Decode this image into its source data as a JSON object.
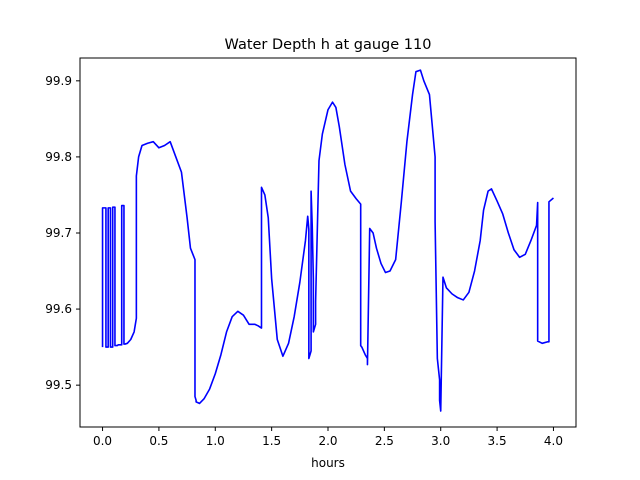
{
  "chart_data": {
    "type": "line",
    "title": "Water Depth h at gauge 110",
    "xlabel": "hours",
    "ylabel": "",
    "xlim": [
      -0.2,
      4.2
    ],
    "ylim": [
      99.445,
      99.93
    ],
    "x_ticks": [
      0.0,
      0.5,
      1.0,
      1.5,
      2.0,
      2.5,
      3.0,
      3.5,
      4.0
    ],
    "x_tick_labels": [
      "0.0",
      "0.5",
      "1.0",
      "1.5",
      "2.0",
      "2.5",
      "3.0",
      "3.5",
      "4.0"
    ],
    "y_ticks": [
      99.5,
      99.6,
      99.7,
      99.8,
      99.9
    ],
    "y_tick_labels": [
      "99.5",
      "99.6",
      "99.7",
      "99.8",
      "99.9"
    ],
    "grid": false,
    "series": [
      {
        "color": "#0000ff",
        "x": [
          0.0,
          0.0,
          0.03,
          0.03,
          0.05,
          0.05,
          0.07,
          0.07,
          0.09,
          0.09,
          0.11,
          0.11,
          0.13,
          0.14,
          0.17,
          0.17,
          0.19,
          0.19,
          0.2,
          0.22,
          0.25,
          0.28,
          0.3,
          0.3,
          0.32,
          0.35,
          0.4,
          0.45,
          0.5,
          0.55,
          0.6,
          0.65,
          0.7,
          0.75,
          0.78,
          0.82,
          0.82,
          0.83,
          0.83,
          0.86,
          0.9,
          0.95,
          1.0,
          1.05,
          1.1,
          1.15,
          1.2,
          1.25,
          1.3,
          1.35,
          1.38,
          1.41,
          1.41,
          1.44,
          1.47,
          1.5,
          1.55,
          1.6,
          1.65,
          1.7,
          1.75,
          1.8,
          1.82,
          1.83,
          1.83,
          1.84,
          1.85,
          1.85,
          1.86,
          1.87,
          1.87,
          1.89,
          1.89,
          1.92,
          1.95,
          2.0,
          2.04,
          2.07,
          2.1,
          2.15,
          2.2,
          2.25,
          2.29,
          2.29,
          2.3,
          2.33,
          2.35,
          2.35,
          2.37,
          2.4,
          2.43,
          2.47,
          2.51,
          2.55,
          2.6,
          2.65,
          2.7,
          2.75,
          2.78,
          2.82,
          2.85,
          2.9,
          2.95,
          2.95,
          2.97,
          2.99,
          2.99,
          3.0,
          3.02,
          3.05,
          3.1,
          3.15,
          3.2,
          3.25,
          3.3,
          3.35,
          3.38,
          3.42,
          3.45,
          3.5,
          3.55,
          3.6,
          3.65,
          3.7,
          3.75,
          3.8,
          3.85,
          3.86,
          3.86,
          3.9,
          3.95,
          3.96,
          3.96,
          4.0
        ],
        "y": [
          99.55,
          99.733,
          99.733,
          99.55,
          99.55,
          99.733,
          99.733,
          99.55,
          99.55,
          99.734,
          99.734,
          99.552,
          99.552,
          99.553,
          99.553,
          99.736,
          99.736,
          99.554,
          99.554,
          99.555,
          99.56,
          99.57,
          99.588,
          99.775,
          99.8,
          99.815,
          99.818,
          99.82,
          99.812,
          99.815,
          99.82,
          99.8,
          99.78,
          99.72,
          99.68,
          99.665,
          99.485,
          99.48,
          99.478,
          99.476,
          99.482,
          99.495,
          99.515,
          99.54,
          99.57,
          99.59,
          99.597,
          99.592,
          99.58,
          99.58,
          99.578,
          99.575,
          99.76,
          99.75,
          99.72,
          99.64,
          99.56,
          99.538,
          99.555,
          99.59,
          99.635,
          99.69,
          99.722,
          99.705,
          99.535,
          99.54,
          99.545,
          99.755,
          99.71,
          99.64,
          99.57,
          99.58,
          99.61,
          99.795,
          99.83,
          99.862,
          99.872,
          99.865,
          99.84,
          99.79,
          99.755,
          99.745,
          99.738,
          99.552,
          99.55,
          99.54,
          99.535,
          99.527,
          99.706,
          99.7,
          99.68,
          99.66,
          99.648,
          99.65,
          99.665,
          99.74,
          99.82,
          99.882,
          99.912,
          99.914,
          99.9,
          99.882,
          99.8,
          99.715,
          99.535,
          99.507,
          99.48,
          99.466,
          99.642,
          99.628,
          99.62,
          99.615,
          99.612,
          99.622,
          99.65,
          99.69,
          99.73,
          99.755,
          99.758,
          99.742,
          99.725,
          99.7,
          99.678,
          99.668,
          99.672,
          99.69,
          99.71,
          99.74,
          99.558,
          99.555,
          99.557,
          99.557,
          99.741,
          99.746
        ]
      }
    ]
  }
}
